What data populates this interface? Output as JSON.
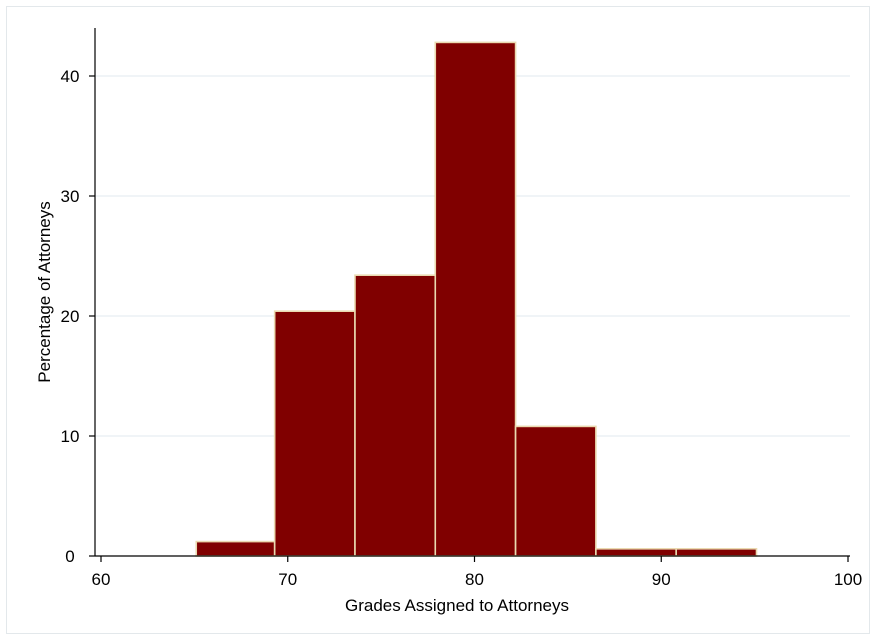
{
  "chart_data": {
    "type": "histogram",
    "title": "",
    "xlabel": "Grades Assigned to Attorneys",
    "ylabel": "Percentage of Attorneys",
    "xlim": [
      60,
      100
    ],
    "ylim": [
      0,
      44
    ],
    "x_ticks": [
      60,
      70,
      80,
      90,
      100
    ],
    "y_ticks": [
      0,
      10,
      20,
      30,
      40
    ],
    "grid": "horizontal",
    "legend": "none",
    "bins": [
      {
        "x0": 65.1,
        "x1": 69.3,
        "value": 1.2
      },
      {
        "x0": 69.3,
        "x1": 73.6,
        "value": 20.4
      },
      {
        "x0": 73.6,
        "x1": 77.9,
        "value": 23.4
      },
      {
        "x0": 77.9,
        "x1": 82.2,
        "value": 42.8
      },
      {
        "x0": 82.2,
        "x1": 86.5,
        "value": 10.8
      },
      {
        "x0": 86.5,
        "x1": 90.8,
        "value": 0.6
      },
      {
        "x0": 90.8,
        "x1": 95.1,
        "value": 0.6
      }
    ],
    "colors": {
      "bar_fill": "#800000",
      "bar_edge": "#ead9b0",
      "grid": "#e6eef2",
      "axis": "#000000",
      "frame": "#e3e8eb"
    }
  }
}
